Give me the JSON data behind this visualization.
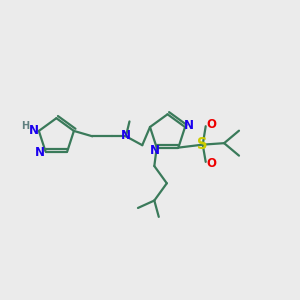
{
  "bg": "#ebebeb",
  "C": "#3a7a5a",
  "N": "#1a00ee",
  "O": "#ee0000",
  "S": "#cccc00",
  "H": "#608080",
  "lw": 1.6,
  "lw2": 3.0,
  "fs": 8.5,
  "figsize": [
    3.0,
    3.0
  ],
  "dpi": 100
}
